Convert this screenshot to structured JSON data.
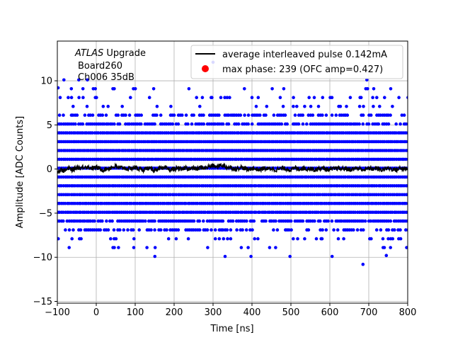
{
  "chart_data": {
    "type": "scatter",
    "xlabel": "Time [ns]",
    "ylabel": "Amplitude [ADC Counts]",
    "xlim": [
      -100,
      800
    ],
    "ylim": [
      -15.2,
      14.5
    ],
    "x_ticks": [
      -100,
      0,
      100,
      200,
      300,
      400,
      500,
      600,
      700,
      800
    ],
    "x_tick_labels": [
      "−100",
      "0",
      "100",
      "200",
      "300",
      "400",
      "500",
      "600",
      "700",
      "800"
    ],
    "y_ticks": [
      -15,
      -10,
      -5,
      0,
      5,
      10
    ],
    "y_tick_labels": [
      "−15",
      "−10",
      "−5",
      "0",
      "5",
      "10"
    ],
    "grid": true,
    "legend_position": "top-right",
    "annotation": {
      "experiment": "ATLAS",
      "experiment_suffix": " Upgrade",
      "line2": "Board260",
      "line3": "Ch006 35dB"
    },
    "series": [
      {
        "name": "average interleaved pulse 0.142mA",
        "kind": "line",
        "color": "#000000",
        "x": [
          -100,
          -90,
          -80,
          -70,
          -60,
          -50,
          -40,
          -30,
          -20,
          -10,
          0,
          10,
          20,
          30,
          40,
          50,
          60,
          70,
          80,
          90,
          100,
          110,
          120,
          130,
          140,
          150,
          160,
          170,
          180,
          190,
          200,
          210,
          220,
          230,
          240,
          250,
          260,
          270,
          280,
          290,
          300,
          310,
          320,
          330,
          340,
          350,
          360,
          370,
          380,
          390,
          400,
          410,
          420,
          430,
          440,
          450,
          460,
          470,
          480,
          490,
          500,
          510,
          520,
          530,
          540,
          550,
          560,
          570,
          580,
          590,
          600,
          610,
          620,
          630,
          640,
          650,
          660,
          670,
          680,
          690,
          700,
          710,
          720,
          730,
          740,
          750,
          760,
          770,
          780,
          790,
          800
        ],
        "y": [
          -0.3,
          -0.1,
          -0.2,
          0.1,
          -0.1,
          0.2,
          0.1,
          0.3,
          0.2,
          0.1,
          0.2,
          0.0,
          -0.1,
          0.1,
          0.2,
          0.3,
          0.1,
          0.2,
          0.0,
          0.1,
          0.2,
          0.0,
          -0.1,
          0.1,
          0.0,
          -0.1,
          0.1,
          0.0,
          0.1,
          -0.1,
          0.0,
          0.1,
          -0.1,
          0.2,
          0.0,
          0.1,
          0.0,
          0.2,
          0.1,
          0.3,
          0.4,
          0.2,
          0.5,
          0.3,
          0.2,
          0.1,
          0.0,
          0.2,
          0.1,
          -0.1,
          0.1,
          0.0,
          -0.1,
          0.1,
          0.0,
          0.1,
          -0.1,
          0.0,
          0.1,
          0.0,
          -0.1,
          0.1,
          0.0,
          0.1,
          0.0,
          0.1,
          -0.1,
          0.0,
          0.1,
          0.0,
          -0.1,
          0.0,
          0.1,
          0.0,
          0.1,
          -0.1,
          0.0,
          0.1,
          0.0,
          -0.1,
          0.1,
          0.0,
          0.1,
          -0.1,
          0.0,
          0.1,
          0.0,
          -0.1,
          0.1,
          0.0,
          0.1
        ]
      },
      {
        "name": "max phase: 239 (OFC amp=0.427)",
        "kind": "marker",
        "color": "#ff0000",
        "x": [],
        "y": []
      },
      {
        "name": "",
        "kind": "scatter",
        "color": "#0000ff",
        "levels": [
          -7,
          -6,
          -5,
          -4,
          -3,
          -2,
          -1,
          0,
          1,
          2,
          3,
          4,
          5,
          6
        ],
        "sparse_levels": [
          -8,
          -9,
          -10,
          7,
          8,
          9,
          10
        ],
        "outliers": {
          "x": [
            -98,
            -83,
            -45,
            295,
            300,
            400,
            560,
            685,
            745
          ],
          "y": [
            9.2,
            10.1,
            10.1,
            8.1,
            12.1,
            8.1,
            8.1,
            -10.8,
            -9.8
          ]
        }
      }
    ]
  }
}
